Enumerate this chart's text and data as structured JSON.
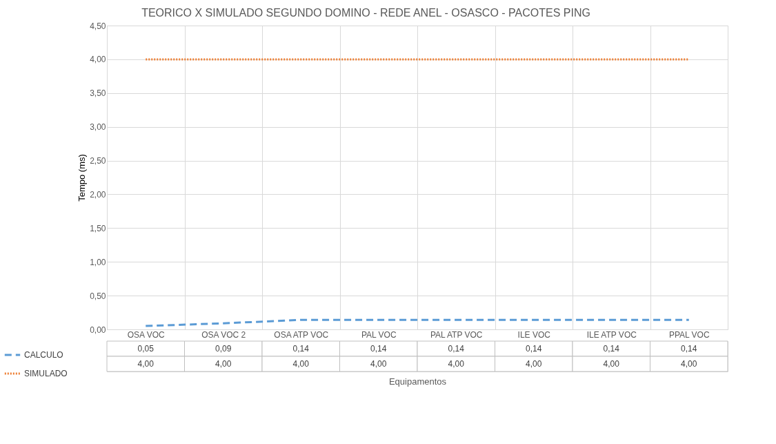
{
  "chart_data": {
    "type": "line",
    "title": "TEORICO X SIMULADO SEGUNDO DOMINO - REDE ANEL - OSASCO - PACOTES PING",
    "xlabel": "Equipamentos",
    "ylabel": "Tempo (ms)",
    "categories": [
      "OSA VOC",
      "OSA VOC 2",
      "OSA ATP VOC",
      "PAL VOC",
      "PAL ATP VOC",
      "ILE VOC",
      "ILE ATP VOC",
      "PPAL VOC"
    ],
    "series": [
      {
        "name": "CALCULO",
        "color": "#5b9bd5",
        "line_style": "dashed",
        "values": [
          0.05,
          0.09,
          0.14,
          0.14,
          0.14,
          0.14,
          0.14,
          0.14
        ],
        "value_labels": [
          "0,05",
          "0,09",
          "0,14",
          "0,14",
          "0,14",
          "0,14",
          "0,14",
          "0,14"
        ]
      },
      {
        "name": "SIMULADO",
        "color": "#ed7d31",
        "line_style": "dotted",
        "values": [
          4.0,
          4.0,
          4.0,
          4.0,
          4.0,
          4.0,
          4.0,
          4.0
        ],
        "value_labels": [
          "4,00",
          "4,00",
          "4,00",
          "4,00",
          "4,00",
          "4,00",
          "4,00",
          "4,00"
        ]
      }
    ],
    "ylim": [
      0,
      4.5
    ],
    "yticks": [
      {
        "value": 0,
        "label": "0,00"
      },
      {
        "value": 0.5,
        "label": "0,50"
      },
      {
        "value": 1,
        "label": "1,00"
      },
      {
        "value": 1.5,
        "label": "1,50"
      },
      {
        "value": 2,
        "label": "2,00"
      },
      {
        "value": 2.5,
        "label": "2,50"
      },
      {
        "value": 3,
        "label": "3,00"
      },
      {
        "value": 3.5,
        "label": "3,50"
      },
      {
        "value": 4,
        "label": "4,00"
      },
      {
        "value": 4.5,
        "label": "4,50"
      }
    ],
    "grid": true,
    "legend": "bottom left"
  }
}
